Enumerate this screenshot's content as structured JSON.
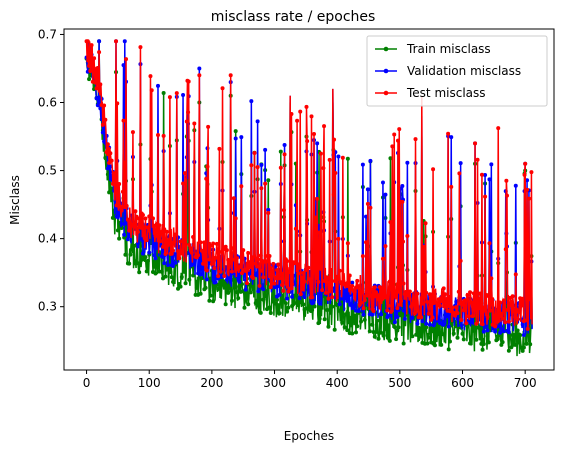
{
  "chart_data": {
    "type": "line",
    "title": "misclass rate / epoches",
    "xlabel": "Epoches",
    "ylabel": "Misclass",
    "xlim": [
      -36,
      746
    ],
    "ylim": [
      0.207,
      0.708
    ],
    "xticks": [
      0,
      100,
      200,
      300,
      400,
      500,
      600,
      700
    ],
    "yticks": [
      0.3,
      0.4,
      0.5,
      0.6,
      0.7
    ],
    "grid": false,
    "legend_position": "upper-right",
    "series": [
      {
        "name": "Train misclass",
        "color": "#008000",
        "marker": "dot",
        "keyframes": [
          [
            0,
            0.67
          ],
          [
            10,
            0.64
          ],
          [
            20,
            0.6
          ],
          [
            30,
            0.53
          ],
          [
            45,
            0.43
          ],
          [
            70,
            0.38
          ],
          [
            120,
            0.36
          ],
          [
            200,
            0.33
          ],
          [
            300,
            0.31
          ],
          [
            400,
            0.29
          ],
          [
            500,
            0.27
          ],
          [
            600,
            0.26
          ],
          [
            711,
            0.25
          ]
        ],
        "peaks": [
          [
            180,
            0.6
          ],
          [
            230,
            0.61
          ],
          [
            325,
            0.6
          ],
          [
            393,
            0.6
          ],
          [
            535,
            0.55
          ],
          [
            620,
            0.51
          ],
          [
            700,
            0.5
          ]
        ]
      },
      {
        "name": "Validation misclass",
        "color": "#0000ff",
        "marker": "dot",
        "keyframes": [
          [
            0,
            0.675
          ],
          [
            10,
            0.65
          ],
          [
            20,
            0.61
          ],
          [
            30,
            0.55
          ],
          [
            45,
            0.46
          ],
          [
            70,
            0.41
          ],
          [
            120,
            0.39
          ],
          [
            200,
            0.36
          ],
          [
            300,
            0.34
          ],
          [
            400,
            0.32
          ],
          [
            500,
            0.3
          ],
          [
            600,
            0.29
          ],
          [
            711,
            0.28
          ]
        ],
        "peaks": [
          [
            180,
            0.65
          ],
          [
            230,
            0.63
          ],
          [
            325,
            0.61
          ],
          [
            393,
            0.62
          ],
          [
            535,
            0.58
          ],
          [
            620,
            0.54
          ],
          [
            700,
            0.51
          ]
        ]
      },
      {
        "name": "Test misclass",
        "color": "#ff0000",
        "marker": "dot",
        "keyframes": [
          [
            0,
            0.685
          ],
          [
            10,
            0.655
          ],
          [
            20,
            0.62
          ],
          [
            30,
            0.56
          ],
          [
            45,
            0.47
          ],
          [
            70,
            0.42
          ],
          [
            120,
            0.4
          ],
          [
            200,
            0.37
          ],
          [
            300,
            0.35
          ],
          [
            400,
            0.33
          ],
          [
            500,
            0.31
          ],
          [
            600,
            0.3
          ],
          [
            711,
            0.29
          ]
        ],
        "peaks": [
          [
            180,
            0.64
          ],
          [
            230,
            0.64
          ],
          [
            325,
            0.61
          ],
          [
            393,
            0.62
          ],
          [
            535,
            0.61
          ],
          [
            620,
            0.54
          ],
          [
            700,
            0.51
          ]
        ]
      }
    ]
  }
}
